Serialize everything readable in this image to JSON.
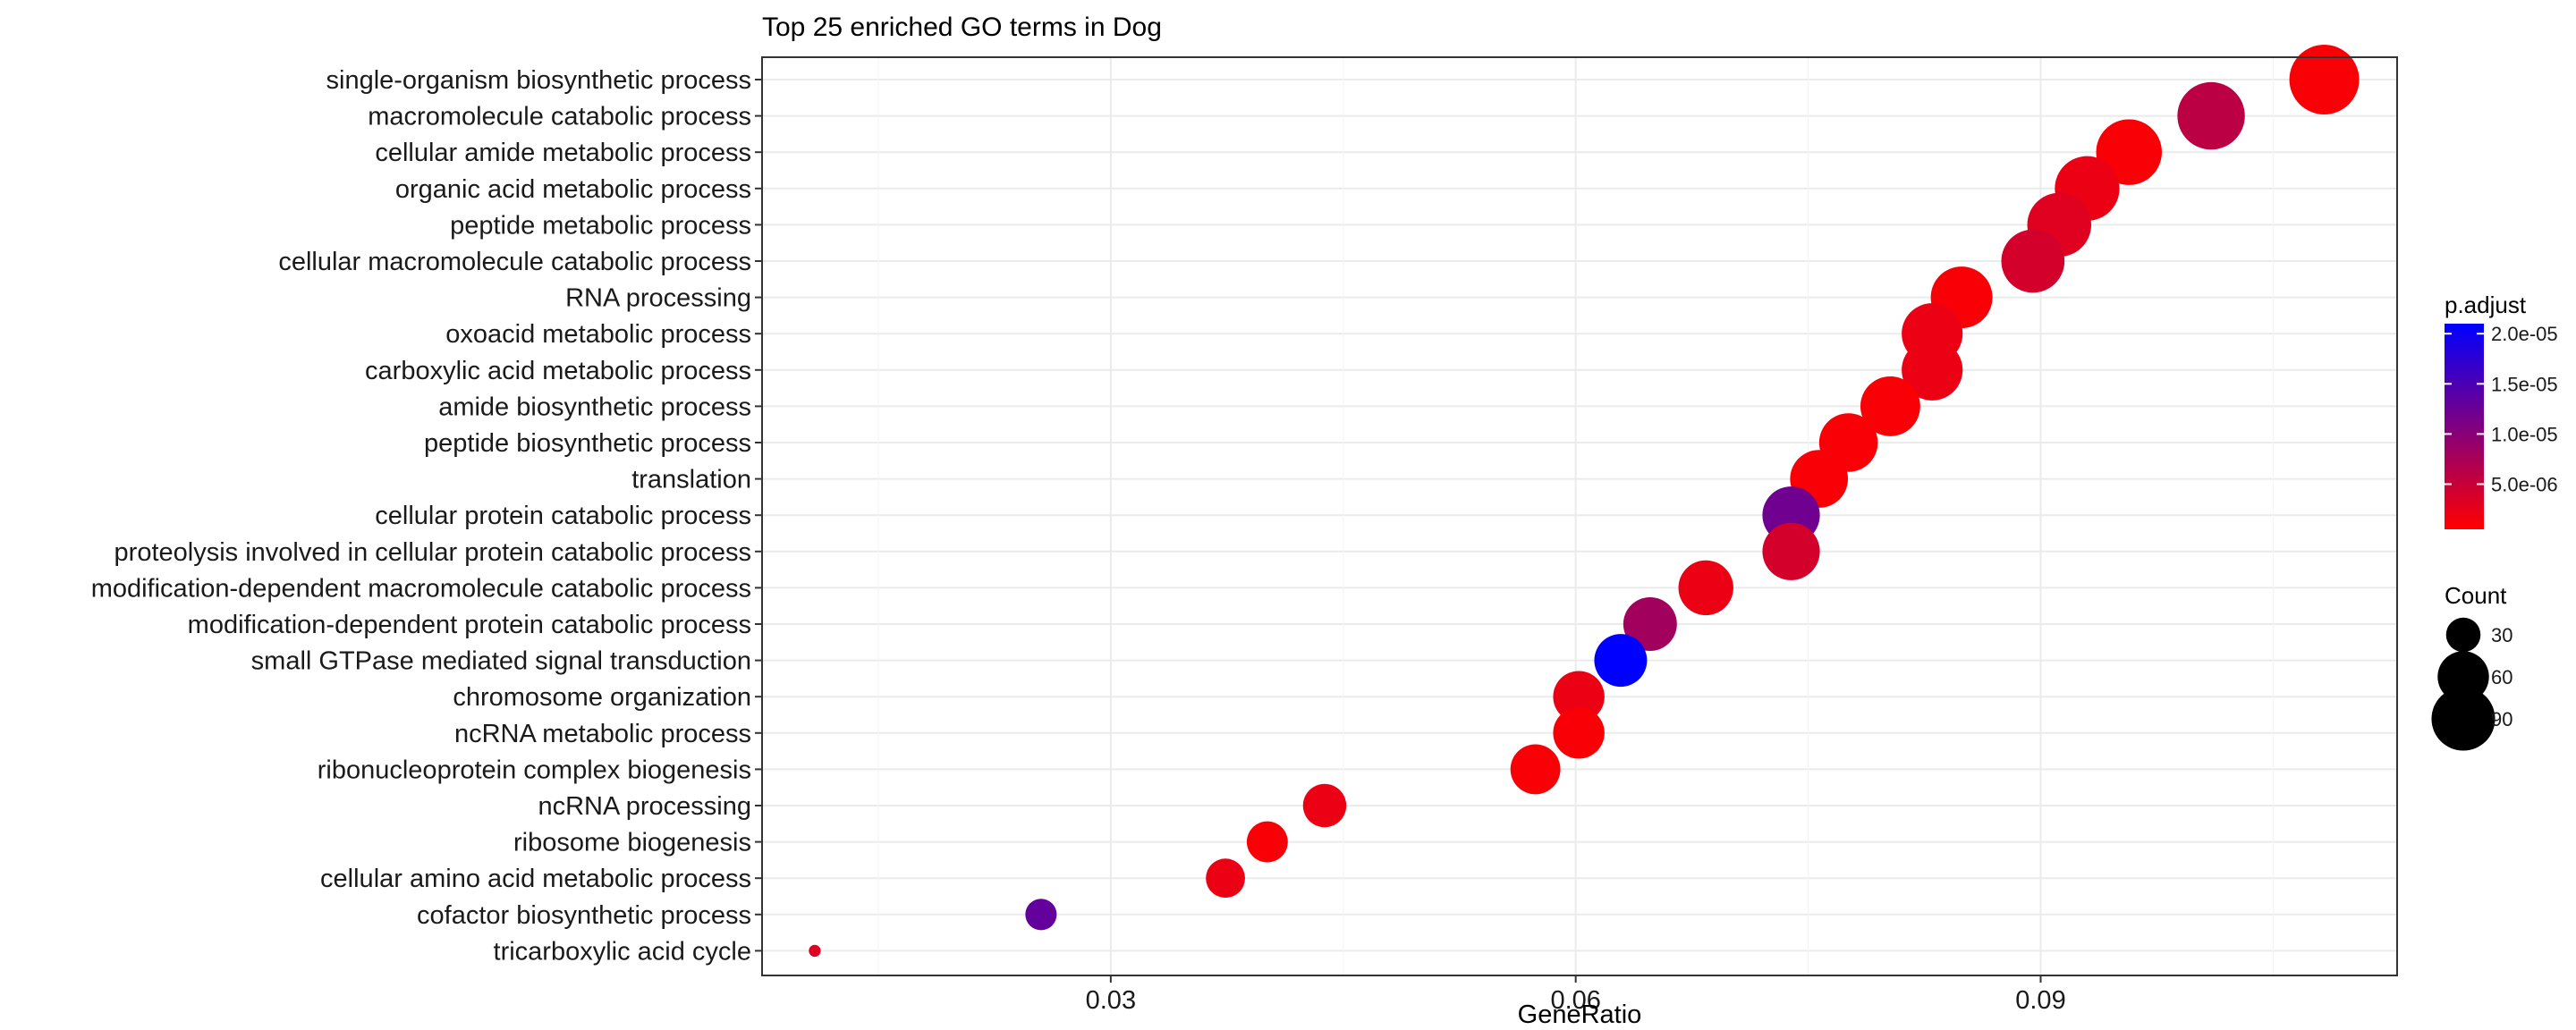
{
  "chart_data": {
    "type": "scatter",
    "title": "Top 25 enriched GO terms in Dog",
    "xlabel": "GeneRatio",
    "ylabel": "",
    "xlim": [
      0.0075,
      0.113
    ],
    "x_ticks": [
      0.03,
      0.06,
      0.09
    ],
    "x_tick_labels": [
      "0.03",
      "0.06",
      "0.09"
    ],
    "grid": true,
    "colors": {
      "low": "#ff0000",
      "high": "#0000ff",
      "panel_border": "#333333",
      "grid": "#ebebeb"
    },
    "color_legend": {
      "title": "p.adjust",
      "min": 5e-07,
      "max": 2.1e-05,
      "ticks": [
        5e-06,
        1e-05,
        1.5e-05,
        2e-05
      ],
      "tick_labels": [
        "5.0e-06",
        "1.0e-05",
        "1.5e-05",
        "2.0e-05"
      ]
    },
    "size_legend": {
      "title": "Count",
      "values": [
        30,
        60,
        90
      ],
      "labels": [
        "30",
        "60",
        "90"
      ]
    },
    "legend_position": "right",
    "terms": [
      "single-organism biosynthetic process",
      "macromolecule catabolic process",
      "cellular amide metabolic process",
      "organic acid metabolic process",
      "peptide metabolic process",
      "cellular macromolecule catabolic process",
      "RNA processing",
      "oxoacid metabolic process",
      "carboxylic acid metabolic process",
      "amide biosynthetic process",
      "peptide biosynthetic process",
      "translation",
      "cellular protein catabolic process",
      "proteolysis involved in cellular protein catabolic process",
      "modification-dependent macromolecule catabolic process",
      "modification-dependent protein catabolic process",
      "small GTPase mediated signal transduction",
      "chromosome organization",
      "ncRNA metabolic process",
      "ribonucleoprotein complex biogenesis",
      "ncRNA processing",
      "ribosome biogenesis",
      "cellular amino acid metabolic process",
      "cofactor biosynthetic process",
      "tricarboxylic acid cycle"
    ],
    "points": [
      {
        "term": "single-organism biosynthetic process",
        "gene_ratio": 0.1083,
        "count": 108,
        "p_adjust": 1e-06
      },
      {
        "term": "macromolecule catabolic process",
        "gene_ratio": 0.101,
        "count": 101,
        "p_adjust": 6e-06
      },
      {
        "term": "cellular amide metabolic process",
        "gene_ratio": 0.0957,
        "count": 96,
        "p_adjust": 1e-06
      },
      {
        "term": "organic acid metabolic process",
        "gene_ratio": 0.093,
        "count": 93,
        "p_adjust": 2e-06
      },
      {
        "term": "peptide metabolic process",
        "gene_ratio": 0.0912,
        "count": 91,
        "p_adjust": 3e-06
      },
      {
        "term": "cellular macromolecule catabolic process",
        "gene_ratio": 0.0895,
        "count": 89,
        "p_adjust": 4e-06
      },
      {
        "term": "RNA processing",
        "gene_ratio": 0.0849,
        "count": 85,
        "p_adjust": 1e-06
      },
      {
        "term": "oxoacid metabolic process",
        "gene_ratio": 0.083,
        "count": 83,
        "p_adjust": 2e-06
      },
      {
        "term": "carboxylic acid metabolic process",
        "gene_ratio": 0.083,
        "count": 83,
        "p_adjust": 2e-06
      },
      {
        "term": "amide biosynthetic process",
        "gene_ratio": 0.0803,
        "count": 80,
        "p_adjust": 1e-06
      },
      {
        "term": "peptide biosynthetic process",
        "gene_ratio": 0.0776,
        "count": 77,
        "p_adjust": 1e-06
      },
      {
        "term": "translation",
        "gene_ratio": 0.0757,
        "count": 75,
        "p_adjust": 1e-06
      },
      {
        "term": "cellular protein catabolic process",
        "gene_ratio": 0.0739,
        "count": 74,
        "p_adjust": 1.2e-05
      },
      {
        "term": "proteolysis involved in cellular protein catabolic process",
        "gene_ratio": 0.0739,
        "count": 74,
        "p_adjust": 4e-06
      },
      {
        "term": "modification-dependent macromolecule catabolic process",
        "gene_ratio": 0.0684,
        "count": 68,
        "p_adjust": 2e-06
      },
      {
        "term": "modification-dependent protein catabolic process",
        "gene_ratio": 0.0648,
        "count": 65,
        "p_adjust": 8e-06
      },
      {
        "term": "small GTPase mediated signal transduction",
        "gene_ratio": 0.0629,
        "count": 63,
        "p_adjust": 2.1e-05
      },
      {
        "term": "chromosome organization",
        "gene_ratio": 0.0602,
        "count": 60,
        "p_adjust": 2e-06
      },
      {
        "term": "ncRNA metabolic process",
        "gene_ratio": 0.0602,
        "count": 60,
        "p_adjust": 1e-06
      },
      {
        "term": "ribonucleoprotein complex biogenesis",
        "gene_ratio": 0.0574,
        "count": 57,
        "p_adjust": 1e-06
      },
      {
        "term": "ncRNA processing",
        "gene_ratio": 0.0438,
        "count": 44,
        "p_adjust": 2e-06
      },
      {
        "term": "ribosome biogenesis",
        "gene_ratio": 0.0401,
        "count": 40,
        "p_adjust": 1e-06
      },
      {
        "term": "cellular amino acid metabolic process",
        "gene_ratio": 0.0374,
        "count": 37,
        "p_adjust": 2e-06
      },
      {
        "term": "cofactor biosynthetic process",
        "gene_ratio": 0.0255,
        "count": 26,
        "p_adjust": 1.3e-05
      },
      {
        "term": "tricarboxylic acid cycle",
        "gene_ratio": 0.0109,
        "count": 11,
        "p_adjust": 3e-06
      }
    ]
  }
}
